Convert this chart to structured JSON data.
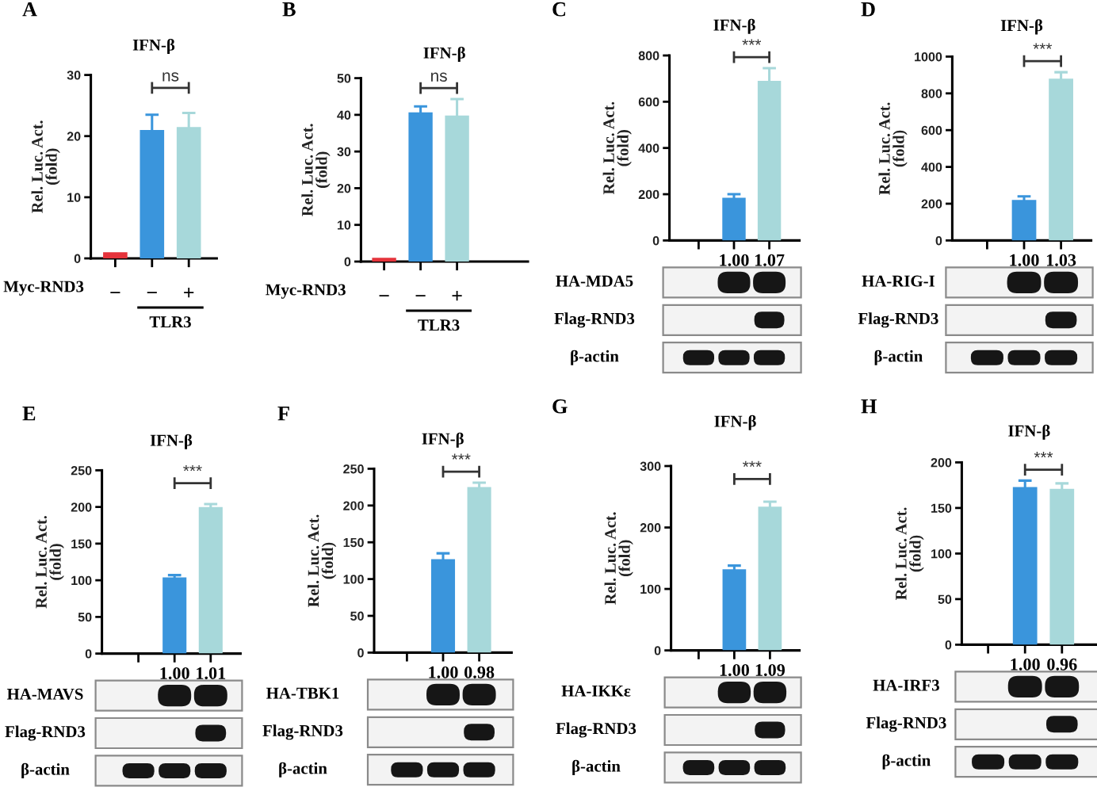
{
  "chart_data": [
    {
      "type": "bar",
      "title": "IFN-β",
      "ylabel": "Rel. Luc. Act.\n(fold)",
      "categories": [
        "−",
        "−",
        "+"
      ],
      "values": [
        1,
        21,
        21.5
      ],
      "errors": [
        null,
        2.5,
        2.3
      ],
      "colors": [
        "#e5333b",
        "#3a95dc",
        "#a7d8da"
      ],
      "ylim": [
        0,
        30
      ],
      "yticks": [
        0,
        10,
        20,
        30
      ],
      "annotations": [
        "A",
        "ns",
        "Myc-RND3",
        "TLR3"
      ]
    },
    {
      "type": "bar",
      "title": "IFN-β",
      "ylabel": "Rel. Luc. Act.\n(fold)",
      "categories": [
        "−",
        "−",
        "+"
      ],
      "values": [
        1,
        40.7,
        39.8
      ],
      "errors": [
        null,
        1.6,
        4.5
      ],
      "colors": [
        "#e5333b",
        "#3a95dc",
        "#a7d8da"
      ],
      "ylim": [
        0,
        50
      ],
      "yticks": [
        0,
        10,
        20,
        30,
        40,
        50
      ],
      "annotations": [
        "B",
        "ns",
        "Myc-RND3",
        "TLR3"
      ]
    },
    {
      "type": "bar",
      "title": "IFN-β",
      "ylabel": "Rel. Luc. Act.\n(fold)",
      "categories": [
        null,
        "1.00",
        "1.07"
      ],
      "values": [
        null,
        185,
        690
      ],
      "errors": [
        null,
        15,
        55
      ],
      "colors": [
        null,
        "#3a95dc",
        "#a7d8da"
      ],
      "ylim": [
        0,
        800
      ],
      "yticks": [
        0,
        200,
        400,
        600,
        800
      ],
      "annotations": [
        "C",
        "***",
        "HA-MDA5",
        "Flag-RND3",
        "β-actin"
      ]
    },
    {
      "type": "bar",
      "title": "IFN-β",
      "ylabel": "Rel. Luc. Act.\n(fold)",
      "categories": [
        null,
        "1.00",
        "1.03"
      ],
      "values": [
        null,
        220,
        880
      ],
      "errors": [
        null,
        20,
        35
      ],
      "colors": [
        null,
        "#3a95dc",
        "#a7d8da"
      ],
      "ylim": [
        0,
        1000
      ],
      "yticks": [
        0,
        200,
        400,
        600,
        800,
        1000
      ],
      "annotations": [
        "D",
        "***",
        "HA-RIG-I",
        "Flag-RND3",
        "β-actin"
      ]
    },
    {
      "type": "bar",
      "title": "IFN-β",
      "ylabel": "Rel. Luc. Act.\n(fold)",
      "categories": [
        null,
        "1.00",
        "1.01"
      ],
      "values": [
        null,
        104,
        200
      ],
      "errors": [
        null,
        3,
        4
      ],
      "colors": [
        null,
        "#3a95dc",
        "#a7d8da"
      ],
      "ylim": [
        0,
        250
      ],
      "yticks": [
        0,
        50,
        100,
        150,
        200,
        250
      ],
      "annotations": [
        "E",
        "***",
        "HA-MAVS",
        "Flag-RND3",
        "β-actin"
      ]
    },
    {
      "type": "bar",
      "title": "IFN-β",
      "ylabel": "Rel. Luc. Act.\n(fold)",
      "categories": [
        null,
        "1.00",
        "0.98"
      ],
      "values": [
        null,
        127,
        225
      ],
      "errors": [
        null,
        8,
        6
      ],
      "colors": [
        null,
        "#3a95dc",
        "#a7d8da"
      ],
      "ylim": [
        0,
        250
      ],
      "yticks": [
        0,
        50,
        100,
        150,
        200,
        250
      ],
      "annotations": [
        "F",
        "***",
        "HA-TBK1",
        "Flag-RND3",
        "β-actin"
      ]
    },
    {
      "type": "bar",
      "title": "IFN-β",
      "ylabel": "Rel. Luc. Act.\n(fold)",
      "categories": [
        null,
        "1.00",
        "1.09"
      ],
      "values": [
        null,
        132,
        234
      ],
      "errors": [
        null,
        6,
        8
      ],
      "colors": [
        null,
        "#3a95dc",
        "#a7d8da"
      ],
      "ylim": [
        0,
        300
      ],
      "yticks": [
        0,
        100,
        200,
        300
      ],
      "annotations": [
        "G",
        "***",
        "HA-IKKε",
        "Flag-RND3",
        "β-actin"
      ]
    },
    {
      "type": "bar",
      "title": "IFN-β",
      "ylabel": "Rel. Luc. Act.\n(fold)",
      "categories": [
        null,
        "1.00",
        "0.96"
      ],
      "values": [
        null,
        173,
        171
      ],
      "errors": [
        null,
        7,
        6
      ],
      "colors": [
        null,
        "#3a95dc",
        "#a7d8da"
      ],
      "ylim": [
        0,
        200
      ],
      "yticks": [
        0,
        50,
        100,
        150,
        200
      ],
      "annotations": [
        "H",
        "***",
        "HA-IRF3",
        "Flag-RND3",
        "β-actin"
      ]
    }
  ]
}
